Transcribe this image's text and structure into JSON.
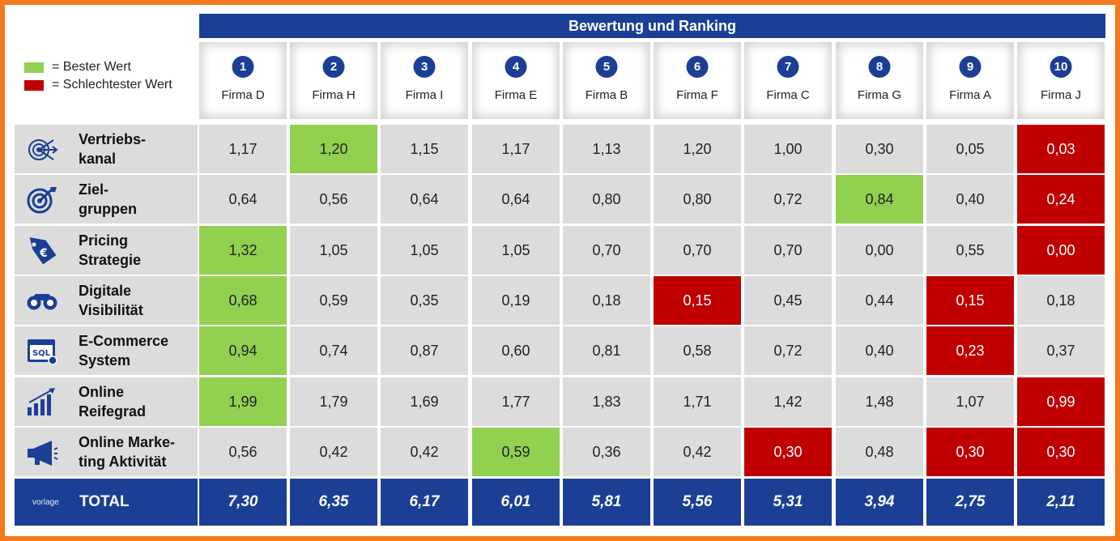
{
  "banner": {
    "title": "Bewertung und Ranking"
  },
  "legend": {
    "best": {
      "label": "= Bester Wert",
      "color": "#92d050"
    },
    "worst": {
      "label": "= Schlechtester Wert",
      "color": "#c00000"
    }
  },
  "accent_colors": {
    "header_blue": "#1a3f94",
    "frame_orange": "#f47920",
    "cell_grey": "#dcdcdc"
  },
  "companies": [
    {
      "rank": "1",
      "name": "Firma D"
    },
    {
      "rank": "2",
      "name": "Firma H"
    },
    {
      "rank": "3",
      "name": "Firma I"
    },
    {
      "rank": "4",
      "name": "Firma E"
    },
    {
      "rank": "5",
      "name": "Firma B"
    },
    {
      "rank": "6",
      "name": "Firma F"
    },
    {
      "rank": "7",
      "name": "Firma C"
    },
    {
      "rank": "8",
      "name": "Firma G"
    },
    {
      "rank": "9",
      "name": "Firma A"
    },
    {
      "rank": "10",
      "name": "Firma J"
    }
  ],
  "rows": [
    {
      "label": "Vertriebs-\nkanal",
      "icon": "target-arrows-icon",
      "values": [
        "1,17",
        "1,20",
        "1,15",
        "1,17",
        "1,13",
        "1,20",
        "1,00",
        "0,30",
        "0,05",
        "0,03"
      ],
      "status": [
        "",
        "best",
        "",
        "",
        "",
        "",
        "",
        "",
        "",
        "worst"
      ]
    },
    {
      "label": "Ziel-\ngruppen",
      "icon": "bullseye-icon",
      "values": [
        "0,64",
        "0,56",
        "0,64",
        "0,64",
        "0,80",
        "0,80",
        "0,72",
        "0,84",
        "0,40",
        "0,24"
      ],
      "status": [
        "",
        "",
        "",
        "",
        "",
        "",
        "",
        "best",
        "",
        "worst"
      ]
    },
    {
      "label": "Pricing\nStrategie",
      "icon": "price-tag-icon",
      "values": [
        "1,32",
        "1,05",
        "1,05",
        "1,05",
        "0,70",
        "0,70",
        "0,70",
        "0,00",
        "0,55",
        "0,00"
      ],
      "status": [
        "best",
        "",
        "",
        "",
        "",
        "",
        "",
        "",
        "",
        "worst"
      ]
    },
    {
      "label": "Digitale\nVisibilität",
      "icon": "binoculars-icon",
      "values": [
        "0,68",
        "0,59",
        "0,35",
        "0,19",
        "0,18",
        "0,15",
        "0,45",
        "0,44",
        "0,15",
        "0,18"
      ],
      "status": [
        "best",
        "",
        "",
        "",
        "",
        "worst",
        "",
        "",
        "worst",
        ""
      ]
    },
    {
      "label": "E-Commerce\nSystem",
      "icon": "sql-browser-icon",
      "values": [
        "0,94",
        "0,74",
        "0,87",
        "0,60",
        "0,81",
        "0,58",
        "0,72",
        "0,40",
        "0,23",
        "0,37"
      ],
      "status": [
        "best",
        "",
        "",
        "",
        "",
        "",
        "",
        "",
        "worst",
        ""
      ]
    },
    {
      "label": "Online\nReifegrad",
      "icon": "growth-bars-icon",
      "values": [
        "1,99",
        "1,79",
        "1,69",
        "1,77",
        "1,83",
        "1,71",
        "1,42",
        "1,48",
        "1,07",
        "0,99"
      ],
      "status": [
        "best",
        "",
        "",
        "",
        "",
        "",
        "",
        "",
        "",
        "worst"
      ]
    },
    {
      "label": "Online Marke-\nting Aktivität",
      "icon": "megaphone-icon",
      "values": [
        "0,56",
        "0,42",
        "0,42",
        "0,59",
        "0,36",
        "0,42",
        "0,30",
        "0,48",
        "0,30",
        "0,30"
      ],
      "status": [
        "",
        "",
        "",
        "best",
        "",
        "",
        "worst",
        "",
        "worst",
        "worst"
      ]
    }
  ],
  "total": {
    "small_text": "vorlage",
    "label": "TOTAL",
    "values": [
      "7,30",
      "6,35",
      "6,17",
      "6,01",
      "5,81",
      "5,56",
      "5,31",
      "3,94",
      "2,75",
      "2,11"
    ]
  }
}
